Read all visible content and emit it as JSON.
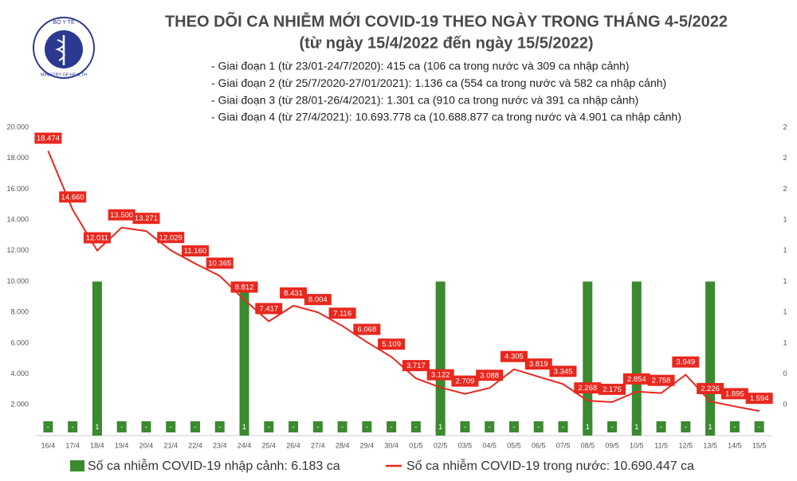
{
  "logo": {
    "top": "BỘ Y TẾ",
    "bottom": "MINISTRY OF HEALTH"
  },
  "chart_data": {
    "type": "combo",
    "title": "THEO DÕI CA NHIỄM MỚI COVID-19 THEO NGÀY TRONG THÁNG 4-5/2022",
    "subtitle": "(từ ngày 15/4/2022 đến ngày 15/5/2022)",
    "notes": [
      "- Giai đoạn 1 (từ 23/01-24/7/2020): 415 ca (106 ca trong nước và 309 ca nhập cảnh)",
      "- Giai đoạn 2 (từ 25/7/2020-27/01/2021): 1.136 ca (554 ca trong nước và 582 ca nhập cảnh)",
      "- Giai đoạn 3 (từ 28/01-26/4/2021): 1.301 ca (910 ca trong nước và 391 ca nhập cảnh)",
      "- Giai đoạn 4 (từ 27/4/2021): 10.693.778 ca (10.688.877 ca trong nước và 4.901 ca nhập cảnh)"
    ],
    "categories": [
      "16/4",
      "17/4",
      "18/4",
      "19/4",
      "20/4",
      "21/4",
      "22/4",
      "23/4",
      "24/4",
      "25/4",
      "26/4",
      "27/4",
      "28/4",
      "29/4",
      "30/4",
      "01/5",
      "02/5",
      "03/5",
      "04/5",
      "05/5",
      "06/5",
      "07/5",
      "08/5",
      "09/5",
      "10/5",
      "11/5",
      "12/5",
      "13/5",
      "14/5",
      "15/5"
    ],
    "series": [
      {
        "name": "Số ca nhiễm COVID-19 nhập cảnh: 6.183 ca",
        "type": "bar",
        "axis": "y2",
        "color": "#3b8a2f",
        "values": [
          0,
          0,
          1,
          0,
          0,
          0,
          0,
          0,
          1,
          0,
          0,
          0,
          0,
          0,
          0,
          0,
          1,
          0,
          0,
          0,
          0,
          0,
          1,
          0,
          1,
          0,
          0,
          1,
          0,
          0
        ],
        "value_labels": [
          "-",
          "-",
          "1",
          "-",
          "-",
          "-",
          "-",
          "-",
          "1",
          "-",
          "-",
          "-",
          "-",
          "-",
          "-",
          "-",
          "1",
          "-",
          "-",
          "-",
          "-",
          "-",
          "1",
          "-",
          "1",
          "-",
          "-",
          "1",
          "-",
          "-"
        ]
      },
      {
        "name": "Số ca nhiễm COVID-19 trong nước: 10.690.447 ca",
        "type": "line",
        "color": "#e8281e",
        "values": [
          18474,
          14660,
          12011,
          13500,
          13271,
          12029,
          11160,
          10365,
          8812,
          7417,
          8431,
          8004,
          7116,
          6068,
          5109,
          3717,
          3122,
          2709,
          3088,
          4305,
          3819,
          3345,
          2268,
          2175,
          2854,
          2758,
          3949,
          2226,
          1895,
          1594
        ],
        "value_labels": [
          "18.474",
          "14.660",
          "12.011",
          "13.500",
          "13.271",
          "12.029",
          "11.160",
          "10.365",
          "8.812",
          "7.417",
          "8.431",
          "8.004",
          "7.116",
          "6.068",
          "5.109",
          "3.717",
          "3.122",
          "2.709",
          "3.088",
          "4.305",
          "3.819",
          "3.345",
          "2.268",
          "2.175",
          "2.854",
          "2.758",
          "3.949",
          "2.226",
          "1.895",
          "1.594"
        ]
      }
    ],
    "ylim": [
      0,
      20000
    ],
    "yticks": [
      {
        "value": 2000,
        "label": "2.000"
      },
      {
        "value": 4000,
        "label": "4.000"
      },
      {
        "value": 6000,
        "label": "6.000"
      },
      {
        "value": 8000,
        "label": "8.000"
      },
      {
        "value": 10000,
        "label": "10.000"
      },
      {
        "value": 12000,
        "label": "12.000"
      },
      {
        "value": 14000,
        "label": "14.000"
      },
      {
        "value": 16000,
        "label": "16.000"
      },
      {
        "value": 18000,
        "label": "18.000"
      },
      {
        "value": 20000,
        "label": "20.000"
      }
    ],
    "y2lim": [
      0,
      2
    ],
    "y2ticks": [
      {
        "value": 0.2,
        "label": "0"
      },
      {
        "value": 0.4,
        "label": "0"
      },
      {
        "value": 0.6,
        "label": "1"
      },
      {
        "value": 0.8,
        "label": "1"
      },
      {
        "value": 1,
        "label": "1"
      },
      {
        "value": 1.2,
        "label": "1"
      },
      {
        "value": 1.4,
        "label": "1"
      },
      {
        "value": 1.6,
        "label": "2"
      },
      {
        "value": 1.8,
        "label": "2"
      },
      {
        "value": 2,
        "label": "2"
      }
    ]
  }
}
